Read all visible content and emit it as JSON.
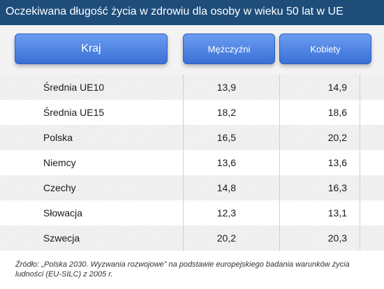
{
  "title": "Oczekiwana długość życia w zdrowiu dla osoby w wieku 50 lat w UE",
  "headers": {
    "country": "Kraj",
    "men": "Mężczyźni",
    "women": "Kobiety"
  },
  "rows": [
    {
      "country": "Średnia UE10",
      "men": "13,9",
      "women": "14,9"
    },
    {
      "country": "Średnia UE15",
      "men": "18,2",
      "women": "18,6"
    },
    {
      "country": "Polska",
      "men": "16,5",
      "women": "20,2"
    },
    {
      "country": "Niemcy",
      "men": "13,6",
      "women": "13,6"
    },
    {
      "country": "Czechy",
      "men": "14,8",
      "women": "16,3"
    },
    {
      "country": "Słowacja",
      "men": "12,3",
      "women": "13,1"
    },
    {
      "country": "Szwecja",
      "men": "20,2",
      "women": "20,3"
    }
  ],
  "source": "Źródło: „Polska 2030. Wyzwania rozwojowe” na podstawie europejskiego badania warunków życia ludności (EU-SILC) z 2005 r."
}
